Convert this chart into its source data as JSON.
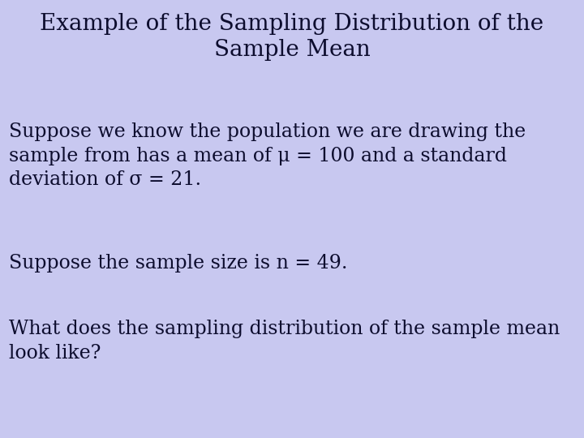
{
  "title_line1": "Example of the Sampling Distribution of the",
  "title_line2": "Sample Mean",
  "body_text1": "Suppose we know the population we are drawing the\nsample from has a mean of μ = 100 and a standard\ndeviation of σ = 21.",
  "body_text2": "Suppose the sample size is n = 49.",
  "body_text3": "What does the sampling distribution of the sample mean\nlook like?",
  "background_color": "#c8c8f0",
  "title_color": "#0d0d2e",
  "body_color": "#0d0d2e",
  "title_fontsize": 20,
  "body_fontsize": 17,
  "fig_width": 7.2,
  "fig_height": 5.4
}
